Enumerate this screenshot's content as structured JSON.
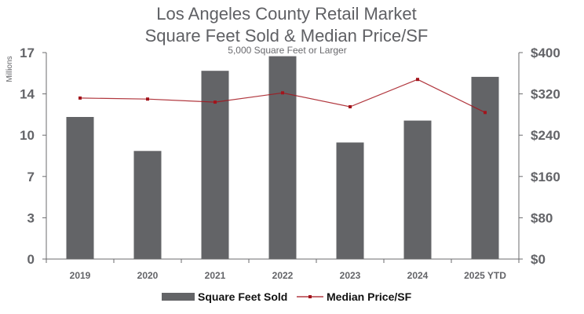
{
  "chart_data": {
    "type": "bar",
    "title_lines": [
      "Los Angeles County Retail Market",
      "Square Feet Sold & Median Price/SF"
    ],
    "subtitle": "5,000 Square Feet or Larger",
    "categories": [
      "2019",
      "2020",
      "2021",
      "2022",
      "2023",
      "2024",
      "2025 YTD"
    ],
    "series": [
      {
        "name": "Square Feet Sold",
        "type": "bar",
        "axis": "left",
        "unit": "millions of square feet",
        "color": "#636467",
        "values": [
          11.7,
          8.9,
          15.5,
          16.7,
          9.6,
          11.4,
          15.0
        ]
      },
      {
        "name": "Median Price/SF",
        "type": "line",
        "axis": "right",
        "unit": "USD per square foot",
        "color": "#a3141c",
        "values": [
          312,
          310,
          304,
          322,
          295,
          348,
          284
        ]
      }
    ],
    "ylabel": "Millions",
    "xlabel": "",
    "y_left": {
      "range": [
        0,
        17
      ],
      "ticks": [
        0,
        3.4,
        6.8,
        10.2,
        13.6,
        17
      ],
      "tick_labels": [
        "0",
        "3",
        "7",
        "10",
        "14",
        "17"
      ]
    },
    "y_right": {
      "range": [
        0,
        400
      ],
      "ticks": [
        0,
        80,
        160,
        240,
        320,
        400
      ],
      "tick_labels": [
        "$0",
        "$80",
        "$160",
        "$240",
        "$320",
        "$400"
      ]
    },
    "grid": false,
    "legend": {
      "position": "bottom",
      "entries": [
        "Square Feet Sold",
        "Median Price/SF"
      ]
    }
  }
}
